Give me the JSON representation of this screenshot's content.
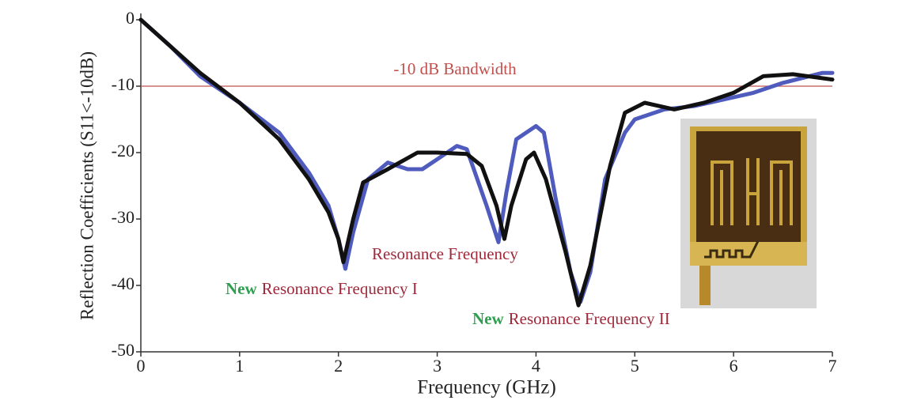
{
  "chart_data": {
    "type": "line",
    "xlabel": "Frequency (GHz)",
    "ylabel": "Reflection Coefficients (S11<-10dB)",
    "xlim": [
      0,
      7
    ],
    "ylim": [
      -50,
      0
    ],
    "xticks": [
      0,
      1,
      2,
      3,
      4,
      5,
      6,
      7
    ],
    "yticks": [
      0,
      -10,
      -20,
      -30,
      -40,
      -50
    ],
    "hline": {
      "value": -10,
      "color": "#c0504d",
      "label": "-10 dB Bandwidth"
    },
    "series": [
      {
        "color": "#4f5bbd",
        "x": [
          0,
          0.3,
          0.6,
          1.0,
          1.4,
          1.7,
          1.9,
          2.0,
          2.07,
          2.15,
          2.3,
          2.5,
          2.7,
          2.85,
          3.0,
          3.2,
          3.3,
          3.5,
          3.62,
          3.7,
          3.8,
          4.0,
          4.08,
          4.2,
          4.35,
          4.45,
          4.55,
          4.7,
          4.9,
          5.0,
          5.3,
          5.6,
          5.9,
          6.2,
          6.5,
          6.9,
          7.0
        ],
        "values": [
          0,
          -4,
          -8.5,
          -12.5,
          -17,
          -23,
          -28,
          -33,
          -37.5,
          -32,
          -24,
          -21.5,
          -22.5,
          -22.5,
          -21,
          -19,
          -19.5,
          -28,
          -33.5,
          -26,
          -18,
          -16,
          -17,
          -27,
          -38,
          -42.5,
          -38,
          -24,
          -17,
          -15,
          -13.5,
          -13,
          -12,
          -11,
          -9.5,
          -8,
          -8
        ]
      },
      {
        "color": "#111111",
        "x": [
          0,
          0.3,
          0.6,
          1.0,
          1.4,
          1.7,
          1.9,
          2.0,
          2.05,
          2.15,
          2.25,
          2.5,
          2.8,
          3.0,
          3.3,
          3.45,
          3.6,
          3.68,
          3.75,
          3.9,
          3.98,
          4.1,
          4.3,
          4.43,
          4.55,
          4.75,
          4.9,
          5.1,
          5.4,
          5.7,
          6.0,
          6.3,
          6.6,
          7.0
        ],
        "values": [
          0,
          -4,
          -8,
          -12.5,
          -18,
          -24,
          -29,
          -33,
          -36.5,
          -30,
          -24.5,
          -22.5,
          -20,
          -20,
          -20.2,
          -22,
          -28,
          -33,
          -28,
          -21,
          -20,
          -24,
          -35,
          -43,
          -37,
          -22,
          -14,
          -12.5,
          -13.5,
          -12.5,
          -11,
          -8.5,
          -8.2,
          -9
        ]
      }
    ],
    "annotations": [
      {
        "parts": [
          {
            "text": "Resonance Frequency",
            "color": "#a0283a"
          }
        ]
      },
      {
        "parts": [
          {
            "text": "New",
            "color": "#2e9e4f"
          },
          {
            "text": "Resonance Frequency I",
            "color": "#a0283a"
          }
        ]
      },
      {
        "parts": [
          {
            "text": "New",
            "color": "#2e9e4f"
          },
          {
            "text": "Resonance Frequency II",
            "color": "#a0283a"
          }
        ]
      }
    ]
  }
}
